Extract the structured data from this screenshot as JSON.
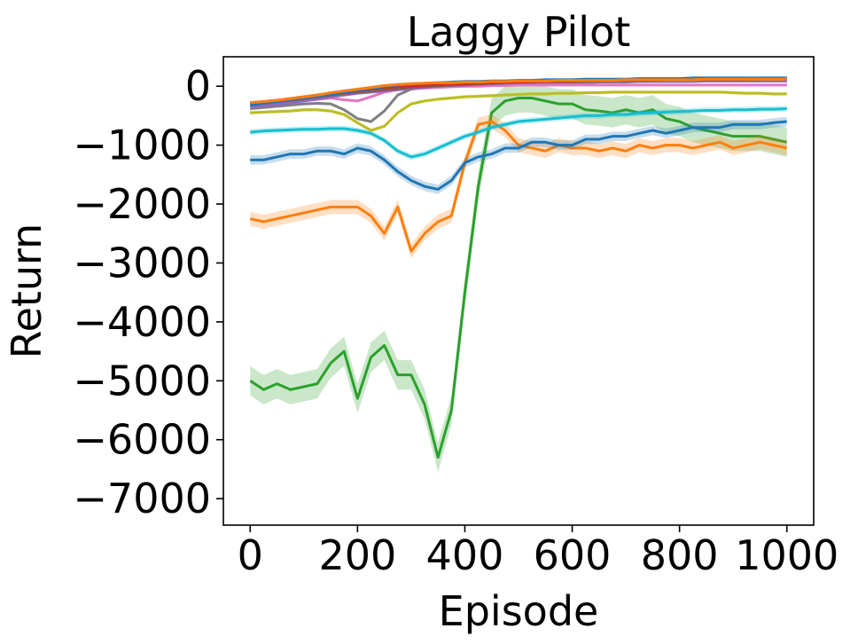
{
  "chart_data": {
    "type": "line",
    "title": "Laggy Pilot",
    "xlabel": "Episode",
    "ylabel": "Return",
    "xlim": [
      -50,
      1050
    ],
    "ylim": [
      -7450,
      500
    ],
    "xticks": [
      0,
      200,
      400,
      600,
      800,
      1000
    ],
    "xtick_labels": [
      "0",
      "200",
      "400",
      "600",
      "800",
      "1000"
    ],
    "yticks": [
      0,
      -1000,
      -2000,
      -3000,
      -4000,
      -5000,
      -6000,
      -7000
    ],
    "ytick_labels": [
      "0",
      "−1000",
      "−2000",
      "−3000",
      "−4000",
      "−5000",
      "−6000",
      "−7000"
    ],
    "grid": false,
    "legend": "none",
    "x": [
      0,
      25,
      50,
      75,
      100,
      125,
      150,
      175,
      200,
      225,
      250,
      275,
      300,
      325,
      350,
      375,
      400,
      425,
      450,
      475,
      500,
      525,
      550,
      575,
      600,
      625,
      650,
      675,
      700,
      725,
      750,
      775,
      800,
      825,
      850,
      875,
      900,
      925,
      950,
      975,
      1000
    ],
    "series": [
      {
        "color": "#2ca02c",
        "band": 250,
        "values": [
          -5000,
          -5150,
          -5050,
          -5150,
          -5100,
          -5050,
          -4700,
          -4500,
          -5300,
          -4600,
          -4400,
          -4900,
          -4900,
          -5400,
          -6300,
          -5500,
          -3500,
          -1700,
          -450,
          -250,
          -200,
          -200,
          -250,
          -300,
          -300,
          -400,
          -420,
          -450,
          -400,
          -450,
          -400,
          -550,
          -600,
          -700,
          -750,
          -800,
          -850,
          -850,
          -850,
          -900,
          -950
        ]
      },
      {
        "color": "#ff7f0e",
        "band": 120,
        "values": [
          -2250,
          -2300,
          -2250,
          -2200,
          -2150,
          -2100,
          -2050,
          -2050,
          -2050,
          -2200,
          -2500,
          -2050,
          -2800,
          -2500,
          -2300,
          -2200,
          -1300,
          -650,
          -600,
          -750,
          -1000,
          -1050,
          -1100,
          -1000,
          -1050,
          -1050,
          -1100,
          -1050,
          -1100,
          -1000,
          -1050,
          -1000,
          -1000,
          -1050,
          -1000,
          -950,
          -1050,
          -1000,
          -950,
          -1000,
          -1050
        ]
      },
      {
        "color": "#1f77b4",
        "band": 80,
        "values": [
          -1250,
          -1250,
          -1200,
          -1150,
          -1150,
          -1100,
          -1100,
          -1150,
          -1050,
          -1100,
          -1250,
          -1450,
          -1600,
          -1700,
          -1750,
          -1600,
          -1300,
          -1200,
          -1150,
          -1050,
          -1050,
          -950,
          -950,
          -1000,
          -1000,
          -900,
          -900,
          -850,
          -850,
          -800,
          -750,
          -800,
          -750,
          -700,
          -700,
          -700,
          -650,
          -650,
          -650,
          -620,
          -600
        ]
      },
      {
        "color": "#17becf",
        "band": 50,
        "values": [
          -780,
          -760,
          -750,
          -740,
          -730,
          -730,
          -720,
          -720,
          -750,
          -800,
          -920,
          -1100,
          -1200,
          -1150,
          -1050,
          -950,
          -850,
          -780,
          -700,
          -650,
          -600,
          -580,
          -560,
          -540,
          -520,
          -500,
          -500,
          -480,
          -480,
          -460,
          -450,
          -440,
          -430,
          -420,
          -410,
          -410,
          -400,
          -400,
          -390,
          -390,
          -380
        ]
      },
      {
        "color": "#bcbd22",
        "band": 30,
        "values": [
          -450,
          -440,
          -430,
          -420,
          -400,
          -400,
          -420,
          -480,
          -620,
          -750,
          -680,
          -450,
          -300,
          -250,
          -220,
          -200,
          -180,
          -170,
          -160,
          -150,
          -140,
          -130,
          -130,
          -120,
          -120,
          -110,
          -110,
          -100,
          -100,
          -100,
          -100,
          -100,
          -100,
          -100,
          -100,
          -100,
          -110,
          -120,
          -120,
          -130,
          -130
        ]
      },
      {
        "color": "#7f7f7f",
        "band": 25,
        "values": [
          -380,
          -360,
          -340,
          -320,
          -300,
          -290,
          -300,
          -400,
          -550,
          -600,
          -420,
          -150,
          -50,
          -20,
          -10,
          0,
          10,
          20,
          30,
          40,
          40,
          50,
          50,
          60,
          60,
          60,
          70,
          70,
          70,
          80,
          80,
          80,
          80,
          80,
          90,
          90,
          90,
          90,
          90,
          90,
          90
        ]
      },
      {
        "color": "#e377c2",
        "band": 25,
        "values": [
          -300,
          -290,
          -280,
          -260,
          -240,
          -220,
          -200,
          -230,
          -250,
          -180,
          -100,
          -60,
          -40,
          -30,
          -20,
          -10,
          0,
          0,
          10,
          10,
          20,
          20,
          20,
          20,
          20,
          20,
          20,
          20,
          20,
          20,
          20,
          20,
          20,
          20,
          20,
          20,
          20,
          20,
          20,
          20,
          20
        ]
      },
      {
        "color": "#9467bd",
        "band": 25,
        "values": [
          -350,
          -330,
          -310,
          -280,
          -250,
          -220,
          -180,
          -150,
          -120,
          -100,
          -80,
          -60,
          -40,
          -20,
          0,
          10,
          20,
          30,
          40,
          50,
          60,
          60,
          70,
          70,
          80,
          80,
          80,
          80,
          90,
          90,
          90,
          90,
          90,
          90,
          90,
          90,
          90,
          90,
          90,
          90,
          90
        ]
      },
      {
        "color": "#8c564b",
        "band": 25,
        "values": [
          -300,
          -280,
          -260,
          -240,
          -210,
          -180,
          -150,
          -120,
          -100,
          -80,
          -60,
          -40,
          -20,
          0,
          10,
          20,
          30,
          40,
          50,
          60,
          70,
          70,
          80,
          80,
          80,
          90,
          90,
          100,
          100,
          100,
          100,
          110,
          110,
          110,
          110,
          110,
          110,
          110,
          120,
          120,
          120
        ]
      },
      {
        "color": "#d62728",
        "band": 25,
        "values": [
          -280,
          -260,
          -240,
          -210,
          -180,
          -150,
          -120,
          -90,
          -60,
          -40,
          -20,
          0,
          10,
          20,
          30,
          40,
          50,
          60,
          60,
          70,
          70,
          80,
          80,
          90,
          90,
          100,
          100,
          100,
          110,
          110,
          110,
          120,
          120,
          120,
          130,
          130,
          130,
          130,
          130,
          130,
          130
        ]
      },
      {
        "color": "#1f77b4",
        "band": 25,
        "values": [
          -320,
          -290,
          -260,
          -230,
          -200,
          -170,
          -140,
          -100,
          -70,
          -40,
          -10,
          20,
          40,
          50,
          60,
          70,
          80,
          80,
          90,
          90,
          100,
          100,
          110,
          110,
          110,
          120,
          120,
          120,
          120,
          130,
          130,
          130,
          130,
          140,
          140,
          140,
          140,
          140,
          140,
          140,
          140
        ]
      },
      {
        "color": "#ff7f0e",
        "band": 25,
        "values": [
          -280,
          -260,
          -240,
          -210,
          -180,
          -150,
          -110,
          -80,
          -50,
          -20,
          10,
          30,
          40,
          50,
          60,
          60,
          70,
          70,
          80,
          80,
          90,
          90,
          90,
          100,
          100,
          100,
          100,
          100,
          110,
          110,
          110,
          110,
          110,
          110,
          120,
          120,
          120,
          120,
          120,
          120,
          120
        ]
      }
    ]
  }
}
